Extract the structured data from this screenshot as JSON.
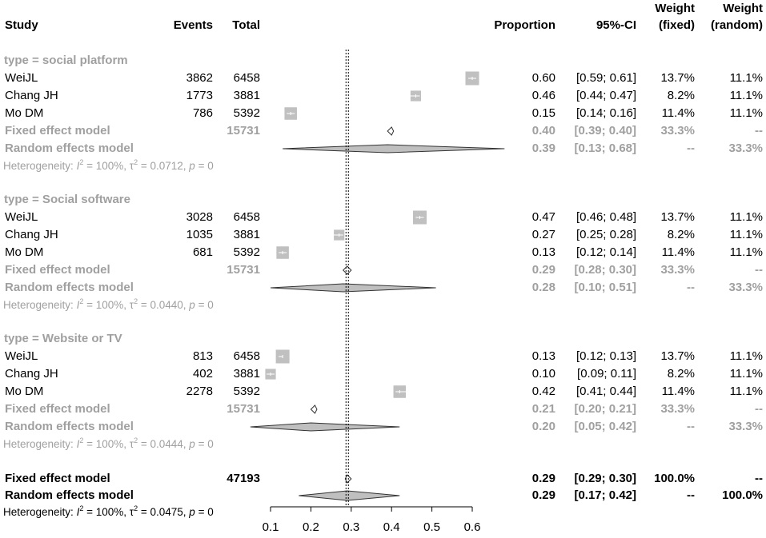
{
  "chart_data": {
    "type": "forest",
    "x_ticks": [
      0.1,
      0.2,
      0.3,
      0.4,
      0.5,
      0.6
    ],
    "xlim": [
      0.1,
      0.6
    ],
    "reference_line": 0.29,
    "headers": {
      "study": "Study",
      "events": "Events",
      "total": "Total",
      "proportion": "Proportion",
      "ci": "95%-CI",
      "weight_fixed": [
        "Weight",
        "(fixed)"
      ],
      "weight_random": [
        "Weight",
        "(random)"
      ]
    },
    "groups": [
      {
        "label": "type = social platform",
        "studies": [
          {
            "name": "WeiJL",
            "events": "3862",
            "total": "6458",
            "prop": 0.6,
            "lo": 0.59,
            "hi": 0.61,
            "prop_text": "0.60",
            "ci_text": "[0.59; 0.61]",
            "w_fixed": "13.7%",
            "w_random": "11.1%"
          },
          {
            "name": "Chang JH",
            "events": "1773",
            "total": "3881",
            "prop": 0.46,
            "lo": 0.44,
            "hi": 0.47,
            "prop_text": "0.46",
            "ci_text": "[0.44; 0.47]",
            "w_fixed": "8.2%",
            "w_random": "11.1%"
          },
          {
            "name": "Mo DM",
            "events": "786",
            "total": "5392",
            "prop": 0.15,
            "lo": 0.14,
            "hi": 0.16,
            "prop_text": "0.15",
            "ci_text": "[0.14; 0.16]",
            "w_fixed": "11.4%",
            "w_random": "11.1%"
          }
        ],
        "fixed": {
          "label": "Fixed effect model",
          "total": "15731",
          "est": 0.4,
          "lo": 0.39,
          "hi": 0.4,
          "prop_text": "0.40",
          "ci_text": "[0.39; 0.40]",
          "w_fixed": "33.3%",
          "w_random": "--"
        },
        "random": {
          "label": "Random effects model",
          "est": 0.39,
          "lo": 0.13,
          "hi": 0.68,
          "prop_text": "0.39",
          "ci_text": "[0.13; 0.68]",
          "w_fixed": "--",
          "w_random": "33.3%"
        },
        "heterogeneity": {
          "i2": "100%",
          "tau2": "0.0712",
          "p": "0"
        }
      },
      {
        "label": "type = Social software",
        "studies": [
          {
            "name": "WeiJL",
            "events": "3028",
            "total": "6458",
            "prop": 0.47,
            "lo": 0.46,
            "hi": 0.48,
            "prop_text": "0.47",
            "ci_text": "[0.46; 0.48]",
            "w_fixed": "13.7%",
            "w_random": "11.1%"
          },
          {
            "name": "Chang JH",
            "events": "1035",
            "total": "3881",
            "prop": 0.27,
            "lo": 0.25,
            "hi": 0.28,
            "prop_text": "0.27",
            "ci_text": "[0.25; 0.28]",
            "w_fixed": "8.2%",
            "w_random": "11.1%"
          },
          {
            "name": "Mo DM",
            "events": "681",
            "total": "5392",
            "prop": 0.13,
            "lo": 0.12,
            "hi": 0.14,
            "prop_text": "0.13",
            "ci_text": "[0.12; 0.14]",
            "w_fixed": "11.4%",
            "w_random": "11.1%"
          }
        ],
        "fixed": {
          "label": "Fixed effect model",
          "total": "15731",
          "est": 0.29,
          "lo": 0.28,
          "hi": 0.3,
          "prop_text": "0.29",
          "ci_text": "[0.28; 0.30]",
          "w_fixed": "33.3%",
          "w_random": "--"
        },
        "random": {
          "label": "Random effects model",
          "est": 0.28,
          "lo": 0.1,
          "hi": 0.51,
          "prop_text": "0.28",
          "ci_text": "[0.10; 0.51]",
          "w_fixed": "--",
          "w_random": "33.3%"
        },
        "heterogeneity": {
          "i2": "100%",
          "tau2": "0.0440",
          "p": "0"
        }
      },
      {
        "label": "type = Website or TV",
        "studies": [
          {
            "name": "WeiJL",
            "events": "813",
            "total": "6458",
            "prop": 0.13,
            "lo": 0.12,
            "hi": 0.13,
            "prop_text": "0.13",
            "ci_text": "[0.12; 0.13]",
            "w_fixed": "13.7%",
            "w_random": "11.1%"
          },
          {
            "name": "Chang JH",
            "events": "402",
            "total": "3881",
            "prop": 0.1,
            "lo": 0.09,
            "hi": 0.11,
            "prop_text": "0.10",
            "ci_text": "[0.09; 0.11]",
            "w_fixed": "8.2%",
            "w_random": "11.1%"
          },
          {
            "name": "Mo DM",
            "events": "2278",
            "total": "5392",
            "prop": 0.42,
            "lo": 0.41,
            "hi": 0.44,
            "prop_text": "0.42",
            "ci_text": "[0.41; 0.44]",
            "w_fixed": "11.4%",
            "w_random": "11.1%"
          }
        ],
        "fixed": {
          "label": "Fixed effect model",
          "total": "15731",
          "est": 0.21,
          "lo": 0.2,
          "hi": 0.21,
          "prop_text": "0.21",
          "ci_text": "[0.20; 0.21]",
          "w_fixed": "33.3%",
          "w_random": "--"
        },
        "random": {
          "label": "Random effects model",
          "est": 0.2,
          "lo": 0.05,
          "hi": 0.42,
          "prop_text": "0.20",
          "ci_text": "[0.05; 0.42]",
          "w_fixed": "--",
          "w_random": "33.3%"
        },
        "heterogeneity": {
          "i2": "100%",
          "tau2": "0.0444",
          "p": "0"
        }
      }
    ],
    "overall": {
      "fixed": {
        "label": "Fixed effect model",
        "total": "47193",
        "est": 0.29,
        "lo": 0.29,
        "hi": 0.3,
        "prop_text": "0.29",
        "ci_text": "[0.29; 0.30]",
        "w_fixed": "100.0%",
        "w_random": "--"
      },
      "random": {
        "label": "Random effects model",
        "est": 0.29,
        "lo": 0.17,
        "hi": 0.42,
        "prop_text": "0.29",
        "ci_text": "[0.17; 0.42]",
        "w_fixed": "--",
        "w_random": "100.0%"
      },
      "heterogeneity": {
        "i2": "100%",
        "tau2": "0.0475",
        "p": "0"
      }
    },
    "colors": {
      "text": "#000000",
      "muted": "#a0a0a0",
      "square": "#c0c0c0",
      "diamond": "#bfbfbf"
    }
  }
}
